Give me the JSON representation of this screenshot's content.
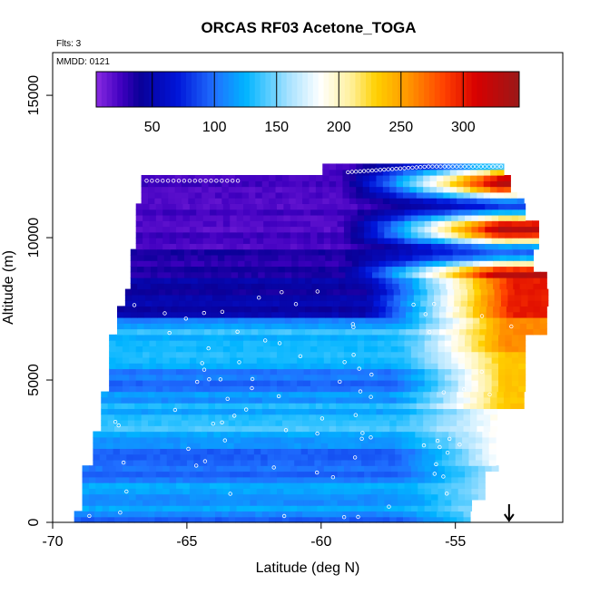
{
  "chart_data": {
    "type": "heatmap",
    "title": "ORCAS RF03 Acetone_TOGA",
    "notes": {
      "flights": "Flts: 3",
      "mmdd": "MMDD: 0121"
    },
    "xlabel": "Latitude (deg N)",
    "ylabel": "Altitude (m)",
    "xlim": [
      -70,
      -51
    ],
    "ylim": [
      0,
      16500
    ],
    "x_ticks": [
      -70,
      -65,
      -60,
      -55
    ],
    "y_ticks": [
      0,
      5000,
      10000,
      15000
    ],
    "colorbar": {
      "range": [
        5,
        345
      ],
      "ticks": [
        50,
        100,
        150,
        200,
        250,
        300
      ],
      "stops": [
        {
          "v": 5,
          "c": "#8a2be2"
        },
        {
          "v": 25,
          "c": "#4000c0"
        },
        {
          "v": 40,
          "c": "#0a0098"
        },
        {
          "v": 70,
          "c": "#0014d8"
        },
        {
          "v": 100,
          "c": "#2070ff"
        },
        {
          "v": 125,
          "c": "#00b4ff"
        },
        {
          "v": 160,
          "c": "#a8e2ff"
        },
        {
          "v": 185,
          "c": "#ffffff"
        },
        {
          "v": 210,
          "c": "#fff09a"
        },
        {
          "v": 230,
          "c": "#ffd000"
        },
        {
          "v": 255,
          "c": "#ff9800"
        },
        {
          "v": 285,
          "c": "#ff4000"
        },
        {
          "v": 310,
          "c": "#d80000"
        },
        {
          "v": 345,
          "c": "#9a1818"
        }
      ]
    },
    "grid": false,
    "arrow_marker_lat": -53
  }
}
